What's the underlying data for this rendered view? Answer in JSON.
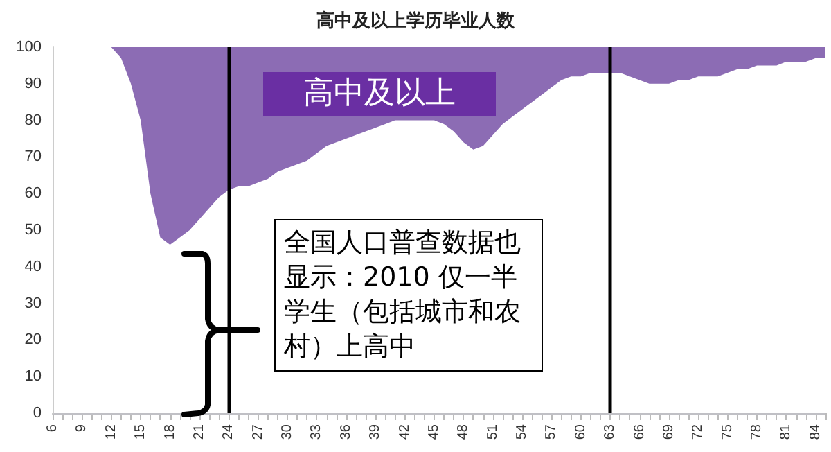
{
  "chart_data": {
    "type": "area",
    "title": "高中及以上学历毕业人数",
    "stacked": true,
    "categories": [
      "6",
      null,
      null,
      "9",
      null,
      null,
      "12",
      null,
      null,
      "15",
      null,
      null,
      "18",
      null,
      null,
      "21",
      null,
      null,
      "24",
      null,
      null,
      "27",
      null,
      null,
      "30",
      null,
      null,
      "33",
      null,
      null,
      "36",
      null,
      null,
      "39",
      null,
      null,
      "42",
      null,
      null,
      "45",
      null,
      null,
      "48",
      null,
      null,
      "51",
      null,
      null,
      "54",
      null,
      null,
      "57",
      null,
      null,
      "60",
      null,
      null,
      "63",
      null,
      null,
      "66",
      null,
      null,
      "69",
      null,
      null,
      "72",
      null,
      null,
      "75",
      null,
      null,
      "78",
      null,
      null,
      "81",
      null,
      null,
      "84",
      null
    ],
    "series": [
      {
        "color": "#ffffff",
        "values": [
          100,
          100,
          100,
          100,
          100,
          100,
          100,
          97,
          90,
          80,
          60,
          48,
          46,
          48,
          50,
          53,
          56,
          59,
          61,
          62,
          62,
          63,
          64,
          66,
          67,
          68,
          69,
          71,
          73,
          74,
          75,
          76,
          77,
          78,
          79,
          80,
          80,
          80,
          80,
          80,
          79,
          77,
          74,
          72,
          73,
          76,
          79,
          81,
          83,
          85,
          87,
          89,
          91,
          92,
          92,
          93,
          93,
          93,
          93,
          92,
          91,
          90,
          90,
          90,
          91,
          91,
          92,
          92,
          92,
          93,
          94,
          94,
          95,
          95,
          95,
          96,
          96,
          96,
          97,
          97
        ]
      },
      {
        "color": "#8c6cb4",
        "values": [
          0,
          0,
          0,
          0,
          0,
          0,
          0,
          3,
          10,
          20,
          40,
          52,
          54,
          52,
          50,
          47,
          44,
          41,
          39,
          38,
          38,
          37,
          36,
          34,
          33,
          32,
          31,
          29,
          27,
          26,
          25,
          24,
          23,
          22,
          21,
          20,
          20,
          20,
          20,
          20,
          21,
          23,
          26,
          28,
          27,
          24,
          21,
          19,
          17,
          15,
          13,
          11,
          9,
          8,
          8,
          7,
          7,
          7,
          7,
          8,
          9,
          10,
          10,
          10,
          9,
          9,
          8,
          8,
          8,
          7,
          6,
          6,
          5,
          5,
          5,
          4,
          4,
          4,
          3,
          3
        ]
      }
    ],
    "ylim": [
      0,
      100
    ],
    "yticks": [
      0,
      10,
      20,
      30,
      40,
      50,
      60,
      70,
      80,
      90,
      100
    ],
    "grid": "y",
    "marker": "none",
    "ref_lines": [
      {
        "axis": "x",
        "value": "24",
        "color": "#000000"
      },
      {
        "axis": "x",
        "value": "63",
        "color": "#000000"
      }
    ],
    "annotations": [
      "高中及以上",
      "全国人口普查数据也显示：2010 仅一半学生（包括城市和农村）上高中"
    ]
  }
}
